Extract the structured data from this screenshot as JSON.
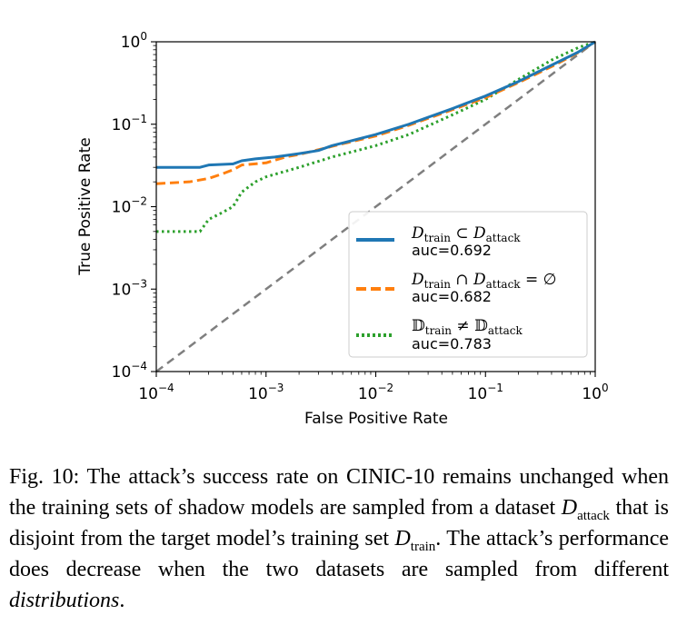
{
  "chart_data": {
    "type": "line",
    "xlabel": "False Positive Rate",
    "ylabel": "True Positive Rate",
    "xscale": "log",
    "yscale": "log",
    "xlim": [
      0.0001,
      1
    ],
    "ylim": [
      0.0001,
      1
    ],
    "x_ticks": [
      {
        "base": "10",
        "exp": "−4"
      },
      {
        "base": "10",
        "exp": "−3"
      },
      {
        "base": "10",
        "exp": "−2"
      },
      {
        "base": "10",
        "exp": "−1"
      },
      {
        "base": "10",
        "exp": "0"
      }
    ],
    "y_ticks": [
      {
        "base": "10",
        "exp": "−4"
      },
      {
        "base": "10",
        "exp": "−3"
      },
      {
        "base": "10",
        "exp": "−2"
      },
      {
        "base": "10",
        "exp": "−1"
      },
      {
        "base": "10",
        "exp": "0"
      }
    ],
    "grid": false,
    "legend_position": "lower-right",
    "series": [
      {
        "name": "Dtrain ⊂ Dattack",
        "auc": "auc=0.692",
        "color": "#1f77b4",
        "style": "solid",
        "points": [
          [
            0.0001,
            0.03
          ],
          [
            0.00025,
            0.03
          ],
          [
            0.0003,
            0.032
          ],
          [
            0.0005,
            0.033
          ],
          [
            0.0006,
            0.036
          ],
          [
            0.0008,
            0.038
          ],
          [
            0.0012,
            0.04
          ],
          [
            0.002,
            0.044
          ],
          [
            0.003,
            0.048
          ],
          [
            0.004,
            0.055
          ],
          [
            0.006,
            0.063
          ],
          [
            0.01,
            0.075
          ],
          [
            0.02,
            0.1
          ],
          [
            0.05,
            0.155
          ],
          [
            0.1,
            0.22
          ],
          [
            0.2,
            0.33
          ],
          [
            0.4,
            0.52
          ],
          [
            0.7,
            0.75
          ],
          [
            1,
            1
          ]
        ]
      },
      {
        "name": "Dtrain ∩ Dattack = ∅",
        "auc": "auc=0.682",
        "color": "#ff7f0e",
        "style": "dashed",
        "points": [
          [
            0.0001,
            0.019
          ],
          [
            0.0002,
            0.02
          ],
          [
            0.0003,
            0.022
          ],
          [
            0.0004,
            0.025
          ],
          [
            0.0005,
            0.028
          ],
          [
            0.0006,
            0.032
          ],
          [
            0.001,
            0.034
          ],
          [
            0.0015,
            0.04
          ],
          [
            0.002,
            0.043
          ],
          [
            0.003,
            0.049
          ],
          [
            0.005,
            0.058
          ],
          [
            0.01,
            0.072
          ],
          [
            0.02,
            0.097
          ],
          [
            0.05,
            0.15
          ],
          [
            0.1,
            0.21
          ],
          [
            0.2,
            0.32
          ],
          [
            0.4,
            0.5
          ],
          [
            0.7,
            0.74
          ],
          [
            1,
            1
          ]
        ]
      },
      {
        "name": "𝔻train ≠ 𝔻attack",
        "auc": "auc=0.783",
        "color": "#2ca02c",
        "style": "dotted",
        "points": [
          [
            0.0001,
            0.005
          ],
          [
            0.00025,
            0.005
          ],
          [
            0.0003,
            0.007
          ],
          [
            0.0004,
            0.0085
          ],
          [
            0.0005,
            0.01
          ],
          [
            0.0006,
            0.015
          ],
          [
            0.0008,
            0.02
          ],
          [
            0.001,
            0.023
          ],
          [
            0.002,
            0.03
          ],
          [
            0.004,
            0.04
          ],
          [
            0.01,
            0.055
          ],
          [
            0.02,
            0.075
          ],
          [
            0.05,
            0.13
          ],
          [
            0.1,
            0.2
          ],
          [
            0.2,
            0.35
          ],
          [
            0.4,
            0.6
          ],
          [
            0.7,
            0.85
          ],
          [
            1,
            1
          ]
        ]
      },
      {
        "name": "",
        "color": "#7f7f7f",
        "style": "dashed-diagonal",
        "points": [
          [
            0.0001,
            0.0001
          ],
          [
            1,
            1
          ]
        ]
      }
    ]
  },
  "caption": {
    "fig_label": "Fig. 10:",
    "part1": " The attack’s success rate on CINIC-10 remains unchanged when the training sets of shadow models are sampled from a dataset ",
    "d_attack": "D",
    "d_attack_sub": "attack",
    "part2": " that is disjoint from the target model’s training set ",
    "d_train": "D",
    "d_train_sub": "train",
    "part3": ". The attack’s performance does decrease when the two datasets are sampled from different ",
    "distributions": "distributions",
    "part4": "."
  }
}
